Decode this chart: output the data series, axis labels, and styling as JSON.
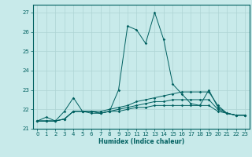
{
  "xlabel": "Humidex (Indice chaleur)",
  "ylabel": "",
  "bg_color": "#c8eaea",
  "grid_color": "#aed4d4",
  "line_color": "#006060",
  "xlim": [
    -0.5,
    23.5
  ],
  "ylim": [
    21.0,
    27.4
  ],
  "yticks": [
    21,
    22,
    23,
    24,
    25,
    26,
    27
  ],
  "xticks": [
    0,
    1,
    2,
    3,
    4,
    5,
    6,
    7,
    8,
    9,
    10,
    11,
    12,
    13,
    14,
    15,
    16,
    17,
    18,
    19,
    20,
    21,
    22,
    23
  ],
  "series": [
    [
      21.4,
      21.6,
      21.4,
      21.9,
      22.6,
      21.9,
      21.8,
      21.8,
      21.9,
      23.0,
      26.3,
      26.1,
      25.4,
      27.0,
      25.6,
      23.3,
      22.8,
      22.3,
      22.2,
      23.0,
      22.1,
      21.8,
      21.7,
      21.7
    ],
    [
      21.4,
      21.4,
      21.4,
      21.5,
      21.9,
      21.9,
      21.9,
      21.9,
      22.0,
      22.1,
      22.2,
      22.4,
      22.5,
      22.6,
      22.7,
      22.8,
      22.9,
      22.9,
      22.9,
      22.9,
      22.2,
      21.8,
      21.7,
      21.7
    ],
    [
      21.4,
      21.4,
      21.4,
      21.5,
      21.9,
      21.9,
      21.9,
      21.8,
      21.9,
      22.0,
      22.1,
      22.2,
      22.3,
      22.4,
      22.4,
      22.5,
      22.5,
      22.5,
      22.5,
      22.5,
      22.0,
      21.8,
      21.7,
      21.7
    ],
    [
      21.4,
      21.4,
      21.4,
      21.5,
      21.9,
      21.9,
      21.9,
      21.8,
      21.9,
      21.9,
      22.0,
      22.1,
      22.1,
      22.2,
      22.2,
      22.2,
      22.2,
      22.2,
      22.2,
      22.2,
      21.9,
      21.8,
      21.7,
      21.7
    ]
  ]
}
